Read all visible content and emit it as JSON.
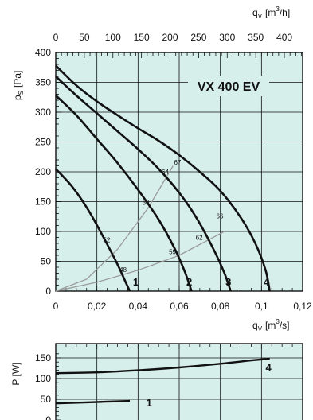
{
  "chart_data": [
    {
      "type": "line",
      "title": "VX 400 EV",
      "ylabel_main": "p",
      "ylabel_sub": "S",
      "ylabel_unit": "[Pa]",
      "xlabel_main": "q",
      "xlabel_sub": "V",
      "xlabel_unit_pre": "[m",
      "xlabel_unit_exp": "3",
      "xlabel_unit_post": "/s]",
      "top_xlabel_main": "q",
      "top_xlabel_sub": "V",
      "top_xlabel_unit_pre": "[m",
      "top_xlabel_unit_exp": "3",
      "top_xlabel_unit_post": "/h]",
      "xlim": [
        0,
        0.12
      ],
      "ylim": [
        0,
        400
      ],
      "top_xlim": [
        0,
        432
      ],
      "x_ticks": [
        "0",
        "0,02",
        "0,04",
        "0,06",
        "0,08",
        "0,1",
        "0,12"
      ],
      "y_ticks": [
        "0",
        "50",
        "100",
        "150",
        "200",
        "250",
        "300",
        "350",
        "400"
      ],
      "top_x_ticks": [
        "0",
        "50",
        "100",
        "150",
        "200",
        "250",
        "300",
        "350",
        "400"
      ],
      "grid": true,
      "series": [
        {
          "name": "1",
          "x": [
            0,
            0.008,
            0.016,
            0.024,
            0.03,
            0.034,
            0.036
          ],
          "y": [
            205,
            175,
            135,
            85,
            45,
            15,
            0
          ]
        },
        {
          "name": "2",
          "x": [
            0,
            0.01,
            0.02,
            0.03,
            0.04,
            0.05,
            0.058,
            0.063,
            0.066
          ],
          "y": [
            328,
            295,
            255,
            215,
            170,
            120,
            70,
            30,
            0
          ]
        },
        {
          "name": "3",
          "x": [
            0,
            0.01,
            0.02,
            0.03,
            0.04,
            0.05,
            0.06,
            0.068,
            0.076,
            0.082,
            0.085
          ],
          "y": [
            360,
            328,
            298,
            268,
            238,
            205,
            165,
            125,
            75,
            30,
            0
          ]
        },
        {
          "name": "4",
          "x": [
            0,
            0.01,
            0.02,
            0.03,
            0.04,
            0.05,
            0.06,
            0.07,
            0.08,
            0.09,
            0.097,
            0.102,
            0.104
          ],
          "y": [
            378,
            345,
            318,
            295,
            273,
            252,
            228,
            200,
            168,
            123,
            80,
            35,
            0
          ]
        }
      ],
      "system_curves": [
        {
          "x": [
            0,
            0.015,
            0.03,
            0.045,
            0.057
          ],
          "y": [
            0,
            20,
            70,
            140,
            210
          ]
        },
        {
          "x": [
            0,
            0.02,
            0.04,
            0.06,
            0.082
          ],
          "y": [
            0,
            15,
            35,
            60,
            100
          ]
        }
      ],
      "efficiency_labels": [
        {
          "text": "67",
          "x": 0.0575,
          "y": 212
        },
        {
          "text": "64",
          "x": 0.0515,
          "y": 196
        },
        {
          "text": "60",
          "x": 0.042,
          "y": 145
        },
        {
          "text": "52",
          "x": 0.023,
          "y": 82
        },
        {
          "text": "48",
          "x": 0.031,
          "y": 32
        },
        {
          "text": "59",
          "x": 0.055,
          "y": 62
        },
        {
          "text": "62",
          "x": 0.068,
          "y": 86
        },
        {
          "text": "66",
          "x": 0.078,
          "y": 122
        }
      ],
      "curve_labels": [
        {
          "text": "1",
          "x": 0.0375,
          "y": 12
        },
        {
          "text": "2",
          "x": 0.0635,
          "y": 12
        },
        {
          "text": "3",
          "x": 0.0825,
          "y": 12
        },
        {
          "text": "4",
          "x": 0.101,
          "y": 12
        }
      ]
    },
    {
      "type": "line",
      "ylabel": "P [W]",
      "xlim": [
        0,
        0.12
      ],
      "ylim": [
        0,
        160
      ],
      "y_ticks": [
        "0",
        "50",
        "100",
        "150"
      ],
      "grid": true,
      "series": [
        {
          "name": "1",
          "x": [
            0,
            0.012,
            0.024,
            0.036
          ],
          "y": [
            40,
            42,
            44,
            46
          ]
        },
        {
          "name": "4",
          "x": [
            0,
            0.02,
            0.04,
            0.06,
            0.08,
            0.095,
            0.104
          ],
          "y": [
            113,
            115,
            120,
            127,
            136,
            144,
            148
          ]
        }
      ],
      "curve_labels": [
        {
          "text": "1",
          "x": 0.044,
          "y": 42
        },
        {
          "text": "4",
          "x": 0.102,
          "y": 128
        }
      ]
    }
  ]
}
